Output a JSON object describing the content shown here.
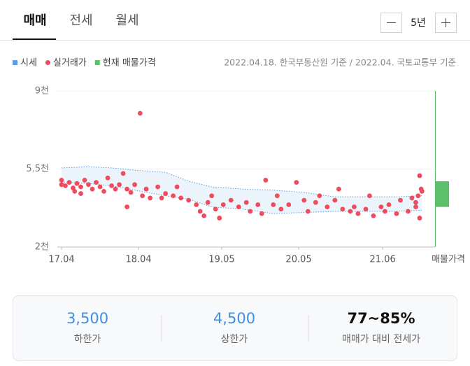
{
  "tabs": [
    "매매",
    "전세",
    "월세"
  ],
  "period": "5년",
  "source": "2022.04.18. 한국부동산원 기준 / 2022.04. 국토교통부 기준",
  "chart_data": {
    "type": "scatter",
    "ylim": [
      2000,
      9000
    ],
    "yticks": [
      {
        "value": 9000,
        "label": "9천"
      },
      {
        "value": 5500,
        "label": "5.5천"
      },
      {
        "value": 2000,
        "label": "2천"
      }
    ],
    "xlim": [
      2017.25,
      2022.1
    ],
    "xticks": [
      {
        "value": 2017.25,
        "label": "17.04"
      },
      {
        "value": 2018.25,
        "label": "18.04"
      },
      {
        "value": 2019.33,
        "label": "19.05"
      },
      {
        "value": 2020.33,
        "label": "20.05"
      },
      {
        "value": 2021.42,
        "label": "21.06"
      }
    ],
    "band": {
      "name": "시세",
      "color": "#5b9be0",
      "x": [
        2017.25,
        2017.6,
        2017.9,
        2018.2,
        2018.6,
        2018.9,
        2019.2,
        2019.6,
        2020.0,
        2020.4,
        2020.8,
        2021.2,
        2021.6,
        2021.93
      ],
      "upper": [
        5550,
        5600,
        5550,
        5450,
        5350,
        4950,
        4700,
        4600,
        4550,
        4450,
        4250,
        4250,
        4250,
        4300
      ],
      "lower": [
        4900,
        4850,
        4750,
        4550,
        4300,
        4150,
        3800,
        3700,
        3500,
        3550,
        3600,
        3600,
        3600,
        3650
      ]
    },
    "series": [
      {
        "name": "실거래가",
        "color": "#f04b5c",
        "x": [
          2017.25,
          2017.25,
          2017.3,
          2017.35,
          2017.4,
          2017.42,
          2017.45,
          2017.5,
          2017.5,
          2017.55,
          2017.6,
          2017.65,
          2017.7,
          2017.75,
          2017.8,
          2017.85,
          2017.9,
          2017.95,
          2018.0,
          2018.05,
          2018.1,
          2018.15,
          2018.2,
          2018.27,
          2018.1,
          2018.3,
          2018.35,
          2018.4,
          2018.5,
          2018.55,
          2018.6,
          2018.7,
          2018.75,
          2018.8,
          2018.9,
          2019.0,
          2019.05,
          2019.1,
          2019.15,
          2019.2,
          2019.25,
          2019.3,
          2019.35,
          2019.45,
          2019.55,
          2019.65,
          2019.7,
          2019.8,
          2019.85,
          2019.9,
          2020.0,
          2020.05,
          2020.1,
          2020.2,
          2020.3,
          2020.4,
          2020.45,
          2020.55,
          2020.6,
          2020.7,
          2020.8,
          2020.85,
          2020.9,
          2021.0,
          2021.05,
          2021.1,
          2021.2,
          2021.25,
          2021.3,
          2021.4,
          2021.45,
          2021.5,
          2021.6,
          2021.65,
          2021.75,
          2021.8,
          2021.85,
          2021.85,
          2021.88,
          2021.9,
          2021.9,
          2021.92,
          2021.93
        ],
        "values": [
          5000,
          4800,
          4750,
          4900,
          4650,
          4500,
          4850,
          4700,
          4400,
          5000,
          4800,
          4600,
          4900,
          4700,
          4500,
          5100,
          4750,
          4600,
          4800,
          5300,
          4600,
          4450,
          4800,
          8000,
          3800,
          4300,
          4600,
          4200,
          4700,
          4200,
          4400,
          4300,
          4700,
          4200,
          4100,
          3900,
          3600,
          3400,
          4000,
          4300,
          3700,
          3300,
          3900,
          4100,
          3800,
          4000,
          3600,
          3900,
          3500,
          5000,
          3900,
          4300,
          3700,
          3900,
          4900,
          4100,
          3600,
          4000,
          4300,
          3800,
          4100,
          4600,
          3700,
          3600,
          3800,
          3500,
          3700,
          4300,
          3400,
          3800,
          3600,
          3900,
          3500,
          4100,
          3600,
          4200,
          4000,
          3800,
          4300,
          5200,
          3300,
          4600,
          4500
        ]
      }
    ],
    "listing": {
      "name": "현재 매물가격",
      "label": "매물가격",
      "color": "#5cbf6a",
      "low": 3800,
      "high": 4950
    }
  },
  "summary": [
    {
      "value": "3,500",
      "label": "하한가"
    },
    {
      "value": "4,500",
      "label": "상한가"
    },
    {
      "value": "77~85%",
      "label": "매매가 대비 전세가"
    }
  ]
}
